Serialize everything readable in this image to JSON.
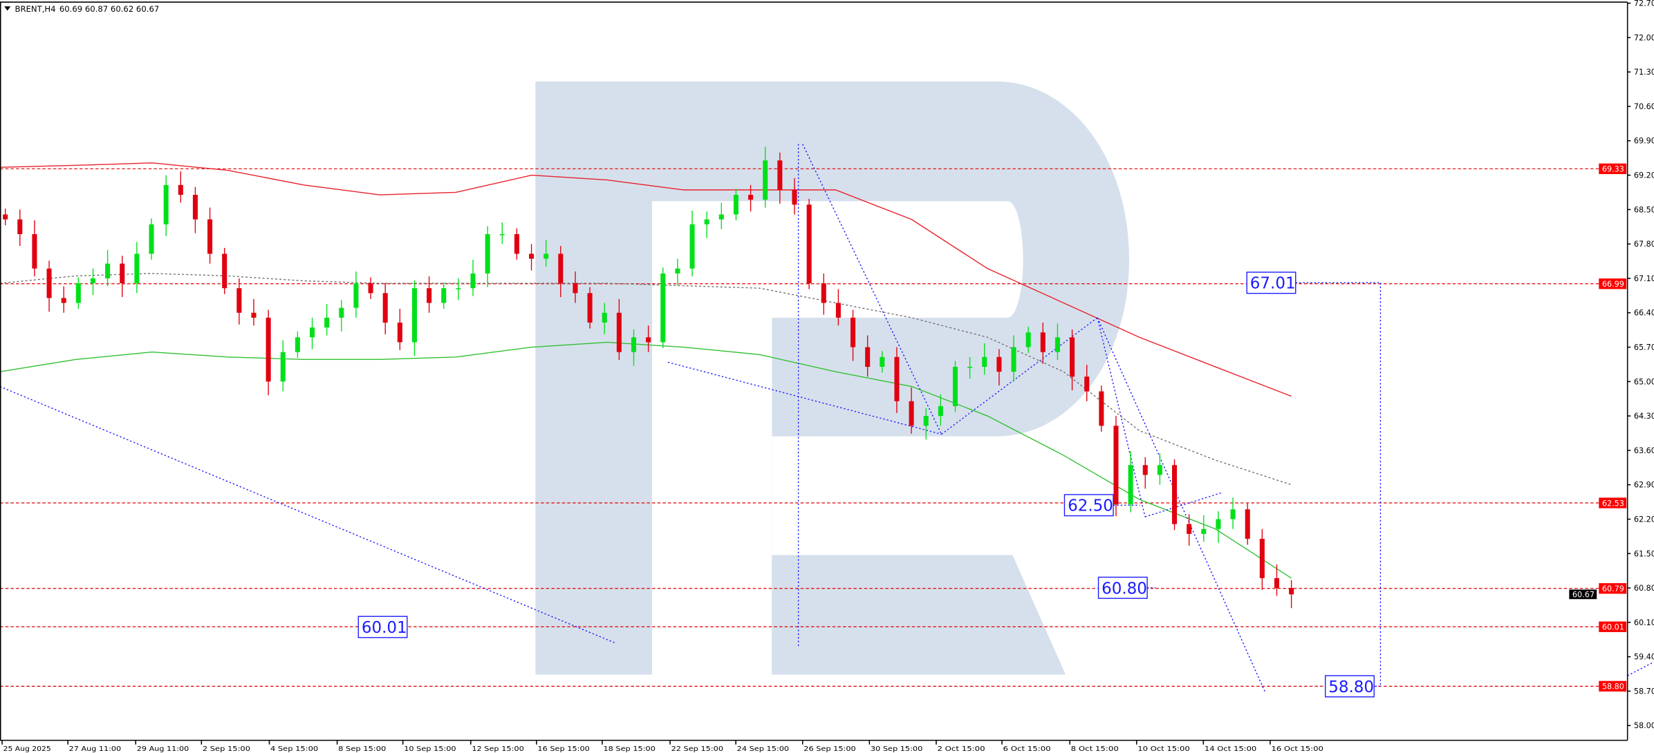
{
  "header": {
    "symbol": "BRENT,H4",
    "ohlc": "60.69 60.87 60.62 60.67"
  },
  "colors": {
    "bull": "#00e01a",
    "bear": "#e00010",
    "ma_red": "#e8202a",
    "ma_green": "#30c030",
    "ma_gray": "#707070",
    "level": "#e00000",
    "forecast": "#1a1aff",
    "watermark": "#d6e0ec"
  },
  "chart_data": {
    "type": "candlestick",
    "title": "BRENT,H4",
    "ylim": [
      57.7,
      72.75
    ],
    "y_ticks": [
      "72.70",
      "72.00",
      "71.30",
      "70.60",
      "69.90",
      "69.20",
      "68.50",
      "67.80",
      "67.10",
      "66.40",
      "65.70",
      "65.00",
      "64.30",
      "63.60",
      "62.90",
      "62.20",
      "61.50",
      "60.80",
      "60.10",
      "59.40",
      "58.70",
      "58.00"
    ],
    "x_ticks": [
      "25 Aug 2025",
      "27 Aug 11:00",
      "29 Aug 11:00",
      "2 Sep 15:00",
      "4 Sep 15:00",
      "8 Sep 15:00",
      "10 Sep 15:00",
      "12 Sep 15:00",
      "16 Sep 15:00",
      "18 Sep 15:00",
      "22 Sep 15:00",
      "24 Sep 15:00",
      "26 Sep 15:00",
      "30 Sep 15:00",
      "2 Oct 15:00",
      "6 Oct 15:00",
      "8 Oct 15:00",
      "10 Oct 15:00",
      "14 Oct 15:00",
      "16 Oct 15:00"
    ],
    "closes": [
      68.3,
      68.0,
      67.3,
      66.7,
      66.6,
      67.0,
      67.1,
      67.4,
      67.0,
      67.6,
      68.2,
      69.0,
      68.8,
      68.3,
      67.6,
      66.9,
      66.4,
      66.3,
      65.0,
      65.6,
      65.9,
      66.1,
      66.3,
      66.5,
      67.0,
      66.8,
      66.2,
      65.8,
      66.9,
      66.6,
      66.9,
      66.9,
      67.2,
      68.0,
      68.0,
      67.6,
      67.5,
      67.6,
      67.0,
      66.8,
      66.2,
      66.4,
      65.6,
      65.9,
      65.8,
      67.2,
      67.3,
      68.2,
      68.3,
      68.4,
      68.8,
      68.7,
      69.5,
      68.9,
      68.6,
      67.0,
      66.6,
      66.3,
      65.7,
      65.3,
      65.5,
      64.6,
      64.1,
      64.3,
      64.5,
      65.3,
      65.3,
      65.5,
      65.2,
      65.7,
      66.0,
      65.6,
      65.9,
      65.1,
      64.8,
      64.1,
      62.5,
      63.3,
      63.1,
      63.3,
      62.1,
      61.9,
      62.0,
      62.2,
      62.4,
      61.8,
      61.0,
      60.8,
      60.67
    ],
    "moving_averages": [
      {
        "color": "#e8202a",
        "values": [
          69.36,
          69.4,
          69.45,
          69.3,
          69.0,
          68.8,
          68.85,
          69.2,
          69.1,
          68.9,
          68.9,
          68.9,
          68.3,
          67.3,
          66.6,
          65.9,
          65.3,
          64.7
        ]
      },
      {
        "color": "#30c030",
        "values": [
          65.2,
          65.45,
          65.6,
          65.5,
          65.45,
          65.45,
          65.5,
          65.7,
          65.8,
          65.7,
          65.55,
          65.2,
          64.9,
          64.3,
          63.5,
          62.6,
          62.0,
          61.0
        ]
      },
      {
        "color": "#707070",
        "values": [
          67.0,
          67.15,
          67.2,
          67.15,
          67.05,
          67.0,
          67.0,
          67.0,
          67.0,
          66.95,
          66.9,
          66.6,
          66.3,
          65.9,
          65.2,
          64.0,
          63.4,
          62.9
        ]
      }
    ],
    "levels": [
      {
        "label": "69.33",
        "value": 69.33
      },
      {
        "label": "66.99",
        "value": 66.99
      },
      {
        "label": "62.53",
        "value": 62.53
      },
      {
        "label": "60.79",
        "value": 60.79
      },
      {
        "label": "60.01",
        "value": 60.01
      },
      {
        "label": "58.80",
        "value": 58.8
      }
    ],
    "current_price": {
      "label": "60.67",
      "value": 60.67
    },
    "forecast_labels": [
      {
        "label": "67.01",
        "value": 67.01
      },
      {
        "label": "62.50",
        "value": 62.5
      },
      {
        "label": "60.80",
        "value": 60.8
      },
      {
        "label": "60.01",
        "value": 60.01
      },
      {
        "label": "58.80",
        "value": 58.8
      }
    ]
  }
}
